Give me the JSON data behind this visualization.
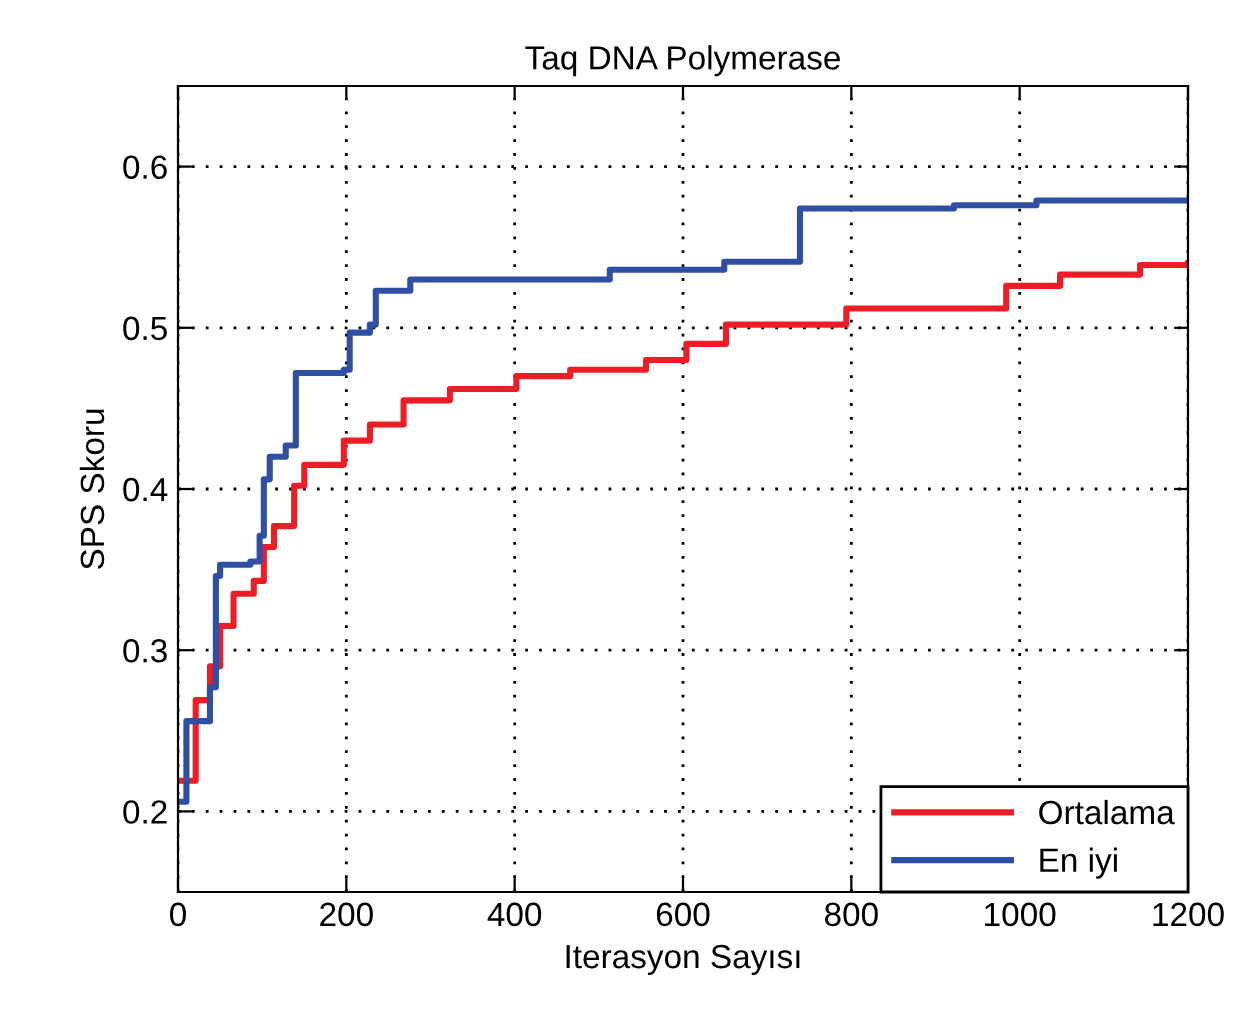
{
  "chart_data": {
    "type": "step",
    "title": "Taq DNA Polymerase",
    "xlabel": "Iterasyon Sayısı",
    "ylabel": "SPS Skoru",
    "xlim": [
      0,
      1200
    ],
    "xticks": [
      0,
      200,
      400,
      600,
      800,
      1000,
      1200
    ],
    "ylim": [
      0.15,
      0.65
    ],
    "yticks": [
      0.2,
      0.3,
      0.4,
      0.5,
      0.6
    ],
    "grid": true,
    "legend": "bottom right",
    "line_style": "solid",
    "series": [
      {
        "name": "Ortalama",
        "color": "#ee1c25",
        "x": [
          2,
          21,
          38,
          50,
          66,
          90,
          102,
          114,
          138,
          150,
          197,
          228,
          268,
          323,
          402,
          466,
          556,
          604,
          651,
          794,
          984,
          1048,
          1143,
          1200
        ],
        "values": [
          0.219,
          0.269,
          0.29,
          0.315,
          0.335,
          0.343,
          0.364,
          0.377,
          0.402,
          0.415,
          0.43,
          0.44,
          0.455,
          0.462,
          0.47,
          0.474,
          0.48,
          0.49,
          0.502,
          0.512,
          0.526,
          0.533,
          0.539,
          0.54
        ]
      },
      {
        "name": "En iyi",
        "color": "#2e4fa3",
        "x": [
          2,
          10,
          38,
          45,
          50,
          86,
          97,
          102,
          109,
          128,
          140,
          197,
          204,
          228,
          235,
          276,
          513,
          649,
          739,
          922,
          1020,
          1200
        ],
        "values": [
          0.206,
          0.256,
          0.277,
          0.346,
          0.353,
          0.355,
          0.371,
          0.406,
          0.42,
          0.427,
          0.472,
          0.474,
          0.497,
          0.502,
          0.523,
          0.53,
          0.536,
          0.541,
          0.574,
          0.576,
          0.579,
          0.579
        ]
      }
    ]
  }
}
